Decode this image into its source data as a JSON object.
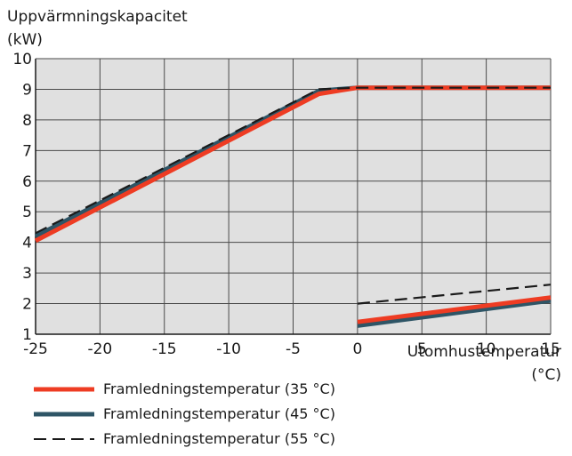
{
  "chart_data": {
    "type": "line",
    "ylabel_line1": "Uppvärmningskapacitet",
    "ylabel_line2": "(kW)",
    "xlabel_line1": "Utomhustemperatur",
    "xlabel_line2": "(°C)",
    "xlim": [
      -25,
      15
    ],
    "ylim": [
      1,
      10
    ],
    "xticks": [
      "-25",
      "-20",
      "-15",
      "-10",
      "-5",
      "0",
      "5",
      "10",
      "15"
    ],
    "yticks": [
      "1",
      "2",
      "3",
      "4",
      "5",
      "6",
      "7",
      "8",
      "9",
      "10"
    ],
    "grid": true,
    "background": "#e0e0e0",
    "series": [
      {
        "name": "Framledningstemperatur (35 °C)",
        "color": "#ee3c23",
        "style": "solid",
        "segments": [
          [
            [
              -25,
              4.05
            ],
            [
              -3,
              8.85
            ],
            [
              0,
              9.05
            ],
            [
              15,
              9.05
            ]
          ],
          [
            [
              0,
              1.4
            ],
            [
              15,
              2.2
            ]
          ]
        ]
      },
      {
        "name": "Framledningstemperatur (45 °C)",
        "color": "#2e5566",
        "style": "solid",
        "segments": [
          [
            [
              -25,
              4.2
            ],
            [
              -3,
              8.95
            ],
            [
              0,
              9.05
            ],
            [
              15,
              9.05
            ]
          ],
          [
            [
              0,
              1.28
            ],
            [
              15,
              2.1
            ]
          ]
        ]
      },
      {
        "name": "Framledningstemperatur (55 °C)",
        "color": "#1a1a1a",
        "style": "dashed",
        "segments": [
          [
            [
              -25,
              4.3
            ],
            [
              -3,
              9.0
            ],
            [
              0,
              9.05
            ],
            [
              15,
              9.05
            ]
          ],
          [
            [
              0,
              2.0
            ],
            [
              15,
              2.62
            ]
          ]
        ]
      }
    ]
  }
}
